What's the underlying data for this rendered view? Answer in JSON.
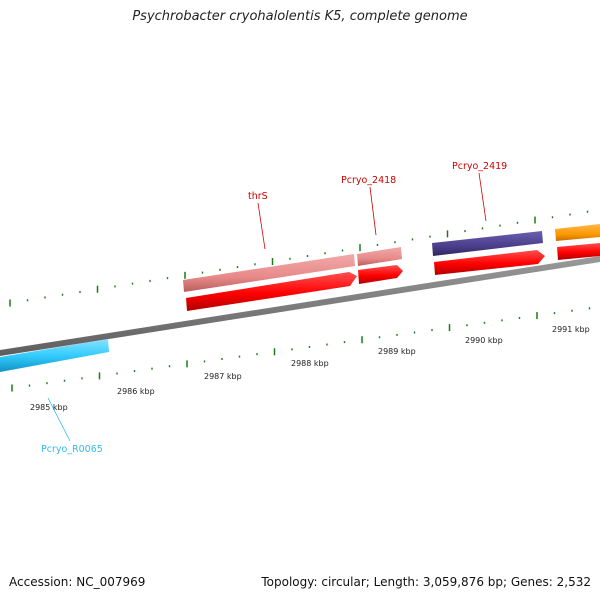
{
  "title": "Psychrobacter cryohalolentis K5, complete genome",
  "footer": {
    "accession": "Accession: NC_007969",
    "summary": "Topology: circular; Length: 3,059,876 bp; Genes: 2,532"
  },
  "scale_labels": [
    {
      "text": "2985 kbp"
    },
    {
      "text": "2986 kbp"
    },
    {
      "text": "2987 kbp"
    },
    {
      "text": "2988 kbp"
    },
    {
      "text": "2989 kbp"
    },
    {
      "text": "2990 kbp"
    },
    {
      "text": "2991 kbp"
    }
  ],
  "genes": [
    {
      "name": "thrS",
      "color": "#cc0000"
    },
    {
      "name": "Pcryo_2418",
      "color": "#cc0000"
    },
    {
      "name": "Pcryo_2419",
      "color": "#cc0000"
    },
    {
      "name": "Pcryo_R0065",
      "color": "#33c0ee"
    }
  ],
  "colors": {
    "backbone": "#7a7a7a",
    "cds": "#ff0000",
    "gene_pink": "#e88a8a",
    "gene_purple": "#4b3f8c",
    "gene_orange": "#ff9900",
    "rna": "#33ccff",
    "ticks": "#1a7a1a"
  }
}
